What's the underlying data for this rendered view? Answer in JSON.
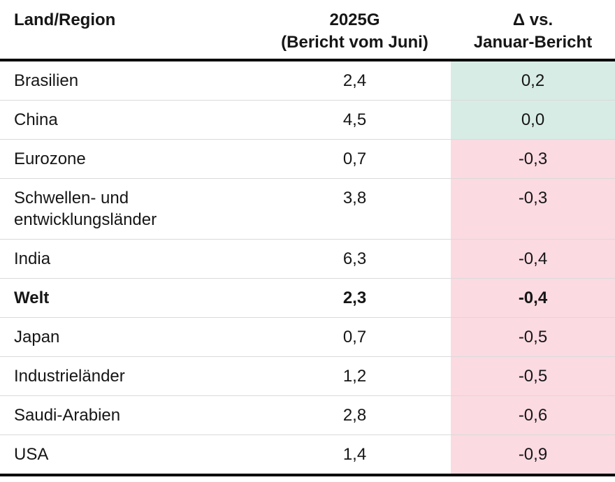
{
  "table": {
    "header": {
      "region": "Land/Region",
      "value_line1": "2025G",
      "value_line2": "(Bericht vom Juni)",
      "delta_line1": "Δ vs.",
      "delta_line2": "Januar-Bericht"
    },
    "rows": [
      {
        "region": "Brasilien",
        "value": "2,4",
        "delta": "0,2",
        "delta_sign": "positive",
        "bold": false
      },
      {
        "region": "China",
        "value": "4,5",
        "delta": "0,0",
        "delta_sign": "positive",
        "bold": false
      },
      {
        "region": "Eurozone",
        "value": "0,7",
        "delta": "-0,3",
        "delta_sign": "negative",
        "bold": false
      },
      {
        "region": "Schwellen- und entwicklungsländer",
        "value": "3,8",
        "delta": "-0,3",
        "delta_sign": "negative",
        "bold": false
      },
      {
        "region": "India",
        "value": "6,3",
        "delta": "-0,4",
        "delta_sign": "negative",
        "bold": false
      },
      {
        "region": "Welt",
        "value": "2,3",
        "delta": "-0,4",
        "delta_sign": "negative",
        "bold": true
      },
      {
        "region": "Japan",
        "value": "0,7",
        "delta": "-0,5",
        "delta_sign": "negative",
        "bold": false
      },
      {
        "region": "Industrieländer",
        "value": "1,2",
        "delta": "-0,5",
        "delta_sign": "negative",
        "bold": false
      },
      {
        "region": "Saudi-Arabien",
        "value": "2,8",
        "delta": "-0,6",
        "delta_sign": "negative",
        "bold": false
      },
      {
        "region": "USA",
        "value": "1,4",
        "delta": "-0,9",
        "delta_sign": "negative",
        "bold": false
      }
    ]
  },
  "colors": {
    "positive_bg": "#d8ece6",
    "negative_bg": "#fbdae2",
    "rule_black": "#000000",
    "row_divider": "#dadada"
  },
  "chart_data": {
    "type": "table",
    "title": "",
    "columns": [
      "Land/Region",
      "2025G (Bericht vom Juni)",
      "Δ vs. Januar-Bericht"
    ],
    "rows": [
      [
        "Brasilien",
        2.4,
        0.2
      ],
      [
        "China",
        4.5,
        0.0
      ],
      [
        "Eurozone",
        0.7,
        -0.3
      ],
      [
        "Schwellen- und entwicklungsländer",
        3.8,
        -0.3
      ],
      [
        "India",
        6.3,
        -0.4
      ],
      [
        "Welt",
        2.3,
        -0.4
      ],
      [
        "Japan",
        0.7,
        -0.5
      ],
      [
        "Industrieländer",
        1.2,
        -0.5
      ],
      [
        "Saudi-Arabien",
        2.8,
        -0.6
      ],
      [
        "USA",
        1.4,
        -0.9
      ]
    ],
    "layout_hints": {
      "delta_shading": "teal for delta >= 0, pink for delta < 0",
      "bold_row": "Welt",
      "decimal_separator": "comma"
    }
  }
}
